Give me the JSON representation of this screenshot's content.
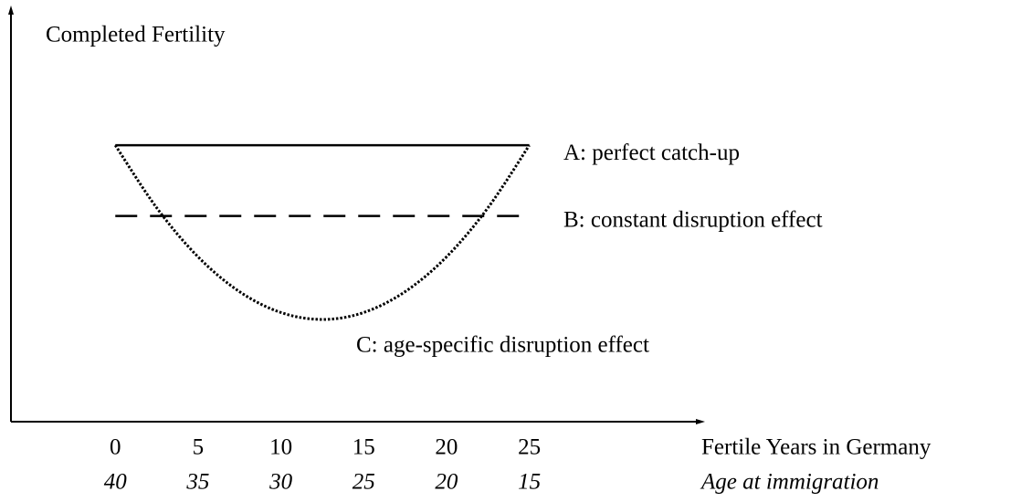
{
  "chart_data": {
    "type": "line",
    "ylabel": "Completed Fertility",
    "xlabel": "Fertile Years in Germany",
    "x2label": "Age at immigration",
    "x": [
      0,
      2.5,
      5,
      7.5,
      10,
      12.5,
      15,
      17.5,
      20,
      22.5,
      25
    ],
    "series": [
      {
        "name": "A: perfect catch-up",
        "color": "#000000",
        "dash": "solid",
        "values": [
          67.6,
          67.6,
          67.6,
          67.6,
          67.6,
          67.6,
          67.6,
          67.6,
          67.6,
          67.6,
          67.6
        ]
      },
      {
        "name": "B: constant disruption effect",
        "color": "#000000",
        "dash": "dashed",
        "values": [
          50.3,
          50.3,
          50.3,
          50.3,
          50.3,
          50.3,
          50.3,
          50.3,
          50.3,
          50.3,
          50.3
        ]
      },
      {
        "name": "C: age-specific disruption effect",
        "color": "#000000",
        "dash": "dotted",
        "values": [
          67.6,
          52.3,
          40.3,
          31.8,
          26.7,
          25,
          26.7,
          31.8,
          40.3,
          52.3,
          67.6
        ]
      }
    ],
    "xlim": [
      -6.3,
      35.5
    ],
    "xticks": [
      0,
      5,
      10,
      15,
      20,
      25
    ],
    "x2lim": [
      46.3,
      4.5
    ],
    "x2ticks": [
      40,
      35,
      30,
      25,
      20,
      15
    ],
    "ylim": [
      0,
      100
    ]
  }
}
